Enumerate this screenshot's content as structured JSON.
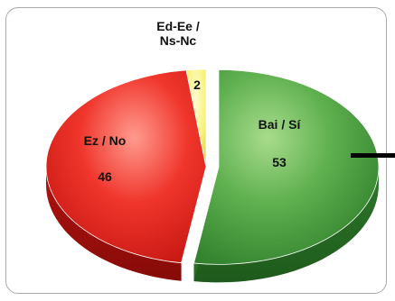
{
  "chart_data": {
    "type": "pie",
    "title": "",
    "legend": "none",
    "slices": [
      {
        "label": "Bai / Sí",
        "value": 53,
        "color": "#3f9a3b",
        "exploded": true
      },
      {
        "label": "Ez / No",
        "value": 46,
        "color": "#e8241f",
        "exploded": false
      },
      {
        "label": "Ed-Ee / Ns-Nc",
        "value": 2,
        "color": "#f7f27a",
        "exploded": false
      }
    ],
    "label_lines": {
      "Bai / Sí": [
        "Bai / Sí"
      ],
      "Ez / No": [
        "Ez / No"
      ],
      "Ed-Ee / Ns-Nc": [
        "Ed-Ee /",
        "Ns-Nc"
      ]
    }
  }
}
